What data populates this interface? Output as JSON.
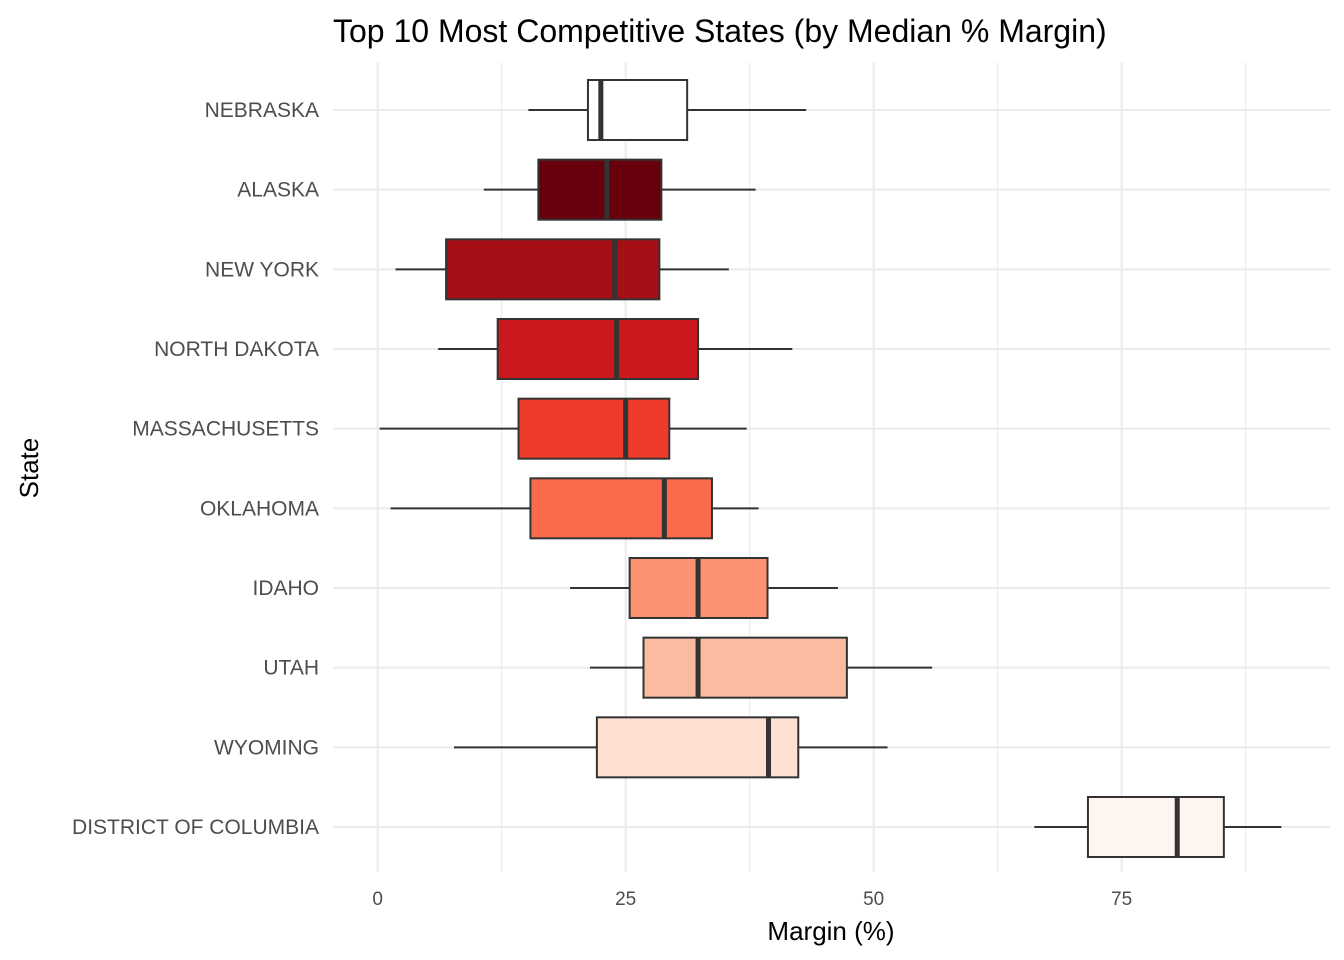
{
  "chart_data": {
    "type": "boxplot",
    "title": "Top 10 Most Competitive States (by Median % Margin)",
    "xlabel": "Margin (%)",
    "ylabel": "State",
    "xlim": [
      -4.5,
      96
    ],
    "xticks": [
      0,
      25,
      50,
      75
    ],
    "grid": true,
    "legend": "none",
    "categories": [
      "NEBRASKA",
      "ALASKA",
      "NEW YORK",
      "NORTH DAKOTA",
      "MASSACHUSETTS",
      "OKLAHOMA",
      "IDAHO",
      "UTAH",
      "WYOMING",
      "DISTRICT OF COLUMBIA"
    ],
    "boxes": [
      {
        "state": "NEBRASKA",
        "min": 15.2,
        "q1": 21.2,
        "median": 22.5,
        "q3": 31.2,
        "max": 43.2,
        "color": "#ffffff"
      },
      {
        "state": "ALASKA",
        "min": 10.7,
        "q1": 16.2,
        "median": 23.1,
        "q3": 28.6,
        "max": 38.1,
        "color": "#67000d"
      },
      {
        "state": "NEW YORK",
        "min": 1.8,
        "q1": 6.9,
        "median": 23.9,
        "q3": 28.4,
        "max": 35.4,
        "color": "#a50f15"
      },
      {
        "state": "NORTH DAKOTA",
        "min": 6.1,
        "q1": 12.1,
        "median": 24.1,
        "q3": 32.3,
        "max": 41.8,
        "color": "#cb181d"
      },
      {
        "state": "MASSACHUSETTS",
        "min": 0.2,
        "q1": 14.2,
        "median": 25.0,
        "q3": 29.4,
        "max": 37.2,
        "color": "#ef3b2c"
      },
      {
        "state": "OKLAHOMA",
        "min": 1.3,
        "q1": 15.4,
        "median": 28.9,
        "q3": 33.7,
        "max": 38.4,
        "color": "#fb6a4a"
      },
      {
        "state": "IDAHO",
        "min": 19.4,
        "q1": 25.4,
        "median": 32.3,
        "q3": 39.3,
        "max": 46.4,
        "color": "#fc9272"
      },
      {
        "state": "UTAH",
        "min": 21.4,
        "q1": 26.8,
        "median": 32.3,
        "q3": 47.3,
        "max": 55.9,
        "color": "#fcbba1"
      },
      {
        "state": "WYOMING",
        "min": 7.7,
        "q1": 22.1,
        "median": 39.4,
        "q3": 42.4,
        "max": 51.4,
        "color": "#fee0d2"
      },
      {
        "state": "DISTRICT OF COLUMBIA",
        "min": 66.2,
        "q1": 71.6,
        "median": 80.6,
        "q3": 85.3,
        "max": 91.1,
        "color": "#fff5f0"
      }
    ]
  }
}
